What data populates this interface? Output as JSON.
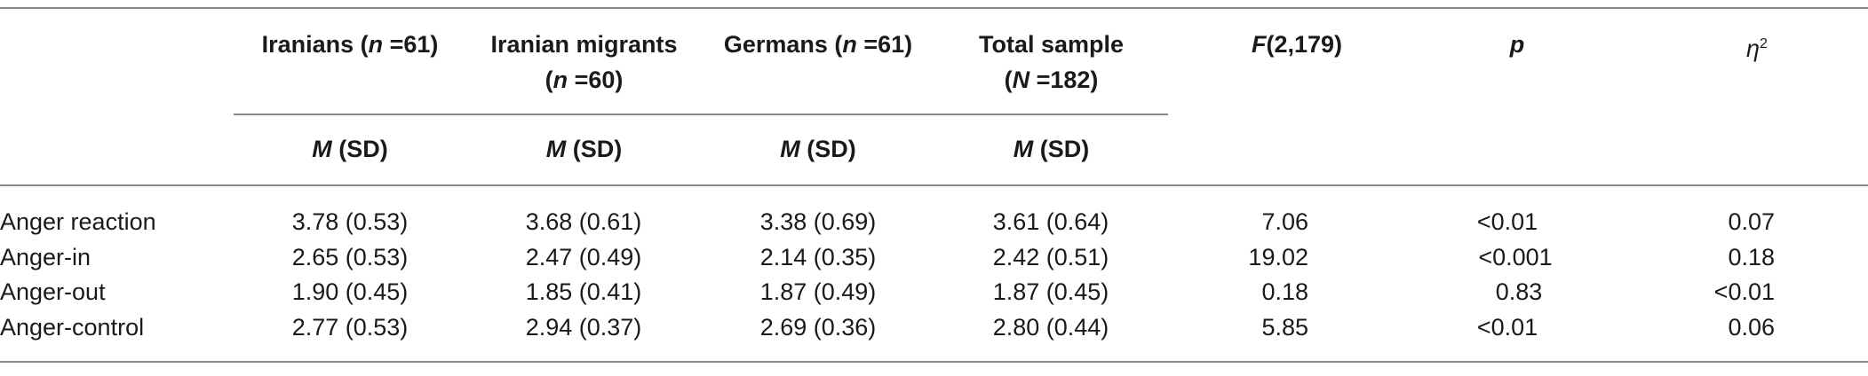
{
  "header": {
    "col1_line1_pre": "Iranians (",
    "col1_line1_n": "n",
    "col1_line1_post": " =61)",
    "col2_line1": "Iranian migrants",
    "col2_line2_pre": "(",
    "col2_line2_n": "n",
    "col2_line2_post": " =60)",
    "col3_line1_pre": "Germans (",
    "col3_line1_n": "n",
    "col3_line1_post": " =61)",
    "col4_line1": "Total sample",
    "col4_line2_pre": "(",
    "col4_line2_n": "N",
    "col4_line2_post": " =182)",
    "f_stat_letter": "F",
    "f_stat_df": "(2,179)",
    "p_label": "p",
    "eta_letter": "η",
    "eta_sup": "2",
    "sub_m": "M",
    "sub_sd": " (SD)"
  },
  "rows": [
    {
      "label": "Anger reaction",
      "iranians": "3.78 (0.53)",
      "migrants": "3.68 (0.61)",
      "germans": "3.38 (0.69)",
      "total": "3.61 (0.64)",
      "f": "7.06",
      "p": "<0.01",
      "eta": "0.07"
    },
    {
      "label": "Anger-in",
      "iranians": "2.65 (0.53)",
      "migrants": "2.47 (0.49)",
      "germans": "2.14 (0.35)",
      "total": "2.42 (0.51)",
      "f": "19.02",
      "p": "<0.001",
      "eta": "0.18"
    },
    {
      "label": "Anger-out",
      "iranians": "1.90 (0.45)",
      "migrants": "1.85 (0.41)",
      "germans": "1.87 (0.49)",
      "total": "1.87 (0.45)",
      "f": "0.18",
      "p": "0.83",
      "eta": "<0.01"
    },
    {
      "label": "Anger-control",
      "iranians": "2.77 (0.53)",
      "migrants": "2.94 (0.37)",
      "germans": "2.69 (0.36)",
      "total": "2.80 (0.44)",
      "f": "5.85",
      "p": "<0.01",
      "eta": "0.06"
    }
  ]
}
